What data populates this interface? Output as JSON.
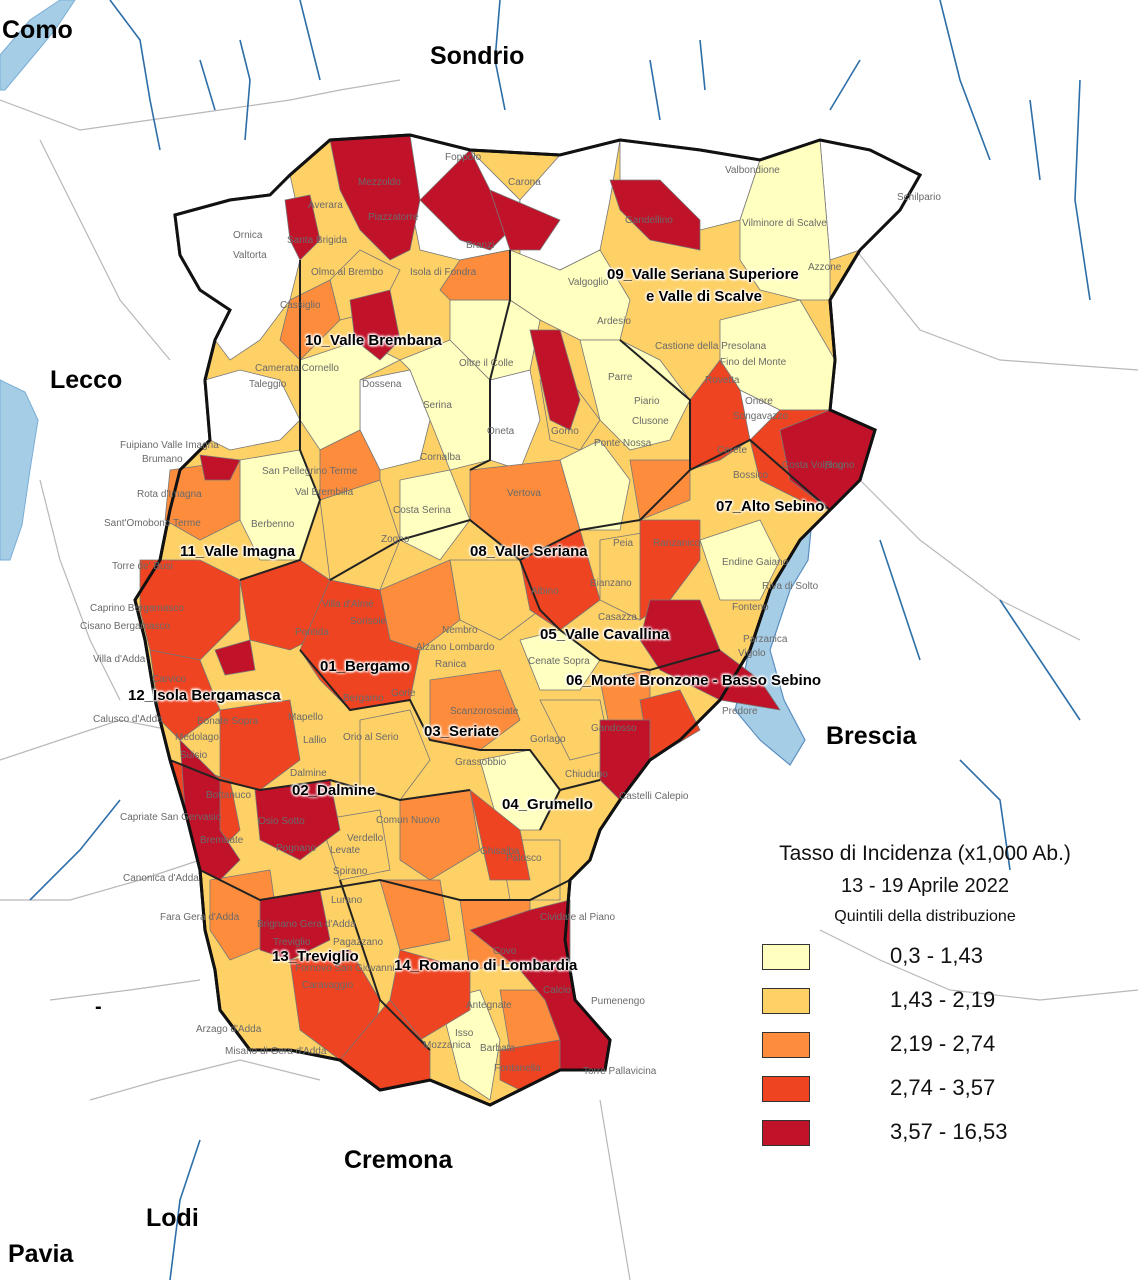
{
  "map": {
    "province_labels": [
      "Como",
      "Sondrio",
      "Lecco",
      "Brescia",
      "Cremona",
      "Lodi",
      "Pavia",
      "-"
    ],
    "districts": [
      "01_Bergamo",
      "02_Dalmine",
      "03_Seriate",
      "04_Grumello",
      "05_Valle Cavallina",
      "06_Monte Bronzone - Basso Sebino",
      "07_Alto Sebino",
      "08_Valle Seriana",
      "09_Valle Seriana Superiore",
      "e Valle di Scalve",
      "10_Valle Brembana",
      "11_Valle Imagna",
      "12_Isola Bergamasca",
      "13_Treviglio",
      "14_Romano di Lombardia"
    ],
    "towns": [
      "Foppolo",
      "Carona",
      "Valbondione",
      "Schilpario",
      "Mezzoldo",
      "Averara",
      "Santa Brigida",
      "Piazzatorre",
      "Branzi",
      "Gandellino",
      "Vilminore di Scalve",
      "Azzone",
      "Ornica",
      "Valtorta",
      "Olmo al Brembo",
      "Isola di Fondra",
      "Valgoglio",
      "Cassiglio",
      "Ardesio",
      "Castione della Presolana",
      "Fino del Monte",
      "Oltre il Colle",
      "Parre",
      "Rovetta",
      "Camerata Cornello",
      "Taleggio",
      "Dossena",
      "Serina",
      "Piario",
      "Clusone",
      "Onore",
      "Songavazzo",
      "Fuipiano Valle Imagna",
      "Brumano",
      "Oneta",
      "Gorno",
      "Ponte Nossa",
      "Cerete",
      "Rogno",
      "Costa Volpino",
      "San Pellegrino Terme",
      "Val Brembilla",
      "Cornalba",
      "Rota d'Imagna",
      "Vertova",
      "Bossico",
      "Sant'Omobono Terme",
      "Costa Serina",
      "Berbenno",
      "Zogno",
      "Peia",
      "Ranzanico",
      "Endine Gaiano",
      "Riva di Solto",
      "Torre de' Busi",
      "Villa d'Almè",
      "Sorisole",
      "Nembro",
      "Albino",
      "Bianzano",
      "Caprino Bergamasco",
      "Cisano Bergamasco",
      "Alzano Lombardo",
      "Casazza",
      "Fonteno",
      "Pontida",
      "Ranica",
      "Villa d'Adda",
      "Carvico",
      "Cenate Sopra",
      "Parzanica",
      "Vigolo",
      "Bergamo",
      "Gorle",
      "Scanzorosciate",
      "Predore",
      "Calusco d'Adda",
      "Bonate Sopra",
      "Mapello",
      "Orio al Serio",
      "Gorlago",
      "Gandosso",
      "Medolago",
      "Suisio",
      "Grassobbio",
      "Chiuduno",
      "Dalmine",
      "Castelli Calepio",
      "Bottanuco",
      "Capriate San Gervasio",
      "Osio Sotto",
      "Brembate",
      "Verdello",
      "Comun Nuovo",
      "Levate",
      "Ghisalba",
      "Palosco",
      "Canonica d'Adda",
      "Spirano",
      "Lurano",
      "Fara Gera d'Adda",
      "Brignano Gera d'Adda",
      "Cividate al Piano",
      "Treviglio",
      "Pagazzano",
      "Covo",
      "Calcio",
      "Fornovo San Giovanni",
      "Caravaggio",
      "Antegnate",
      "Pumenengo",
      "Arzago d'Adda",
      "Isso",
      "Barbata",
      "Misano di Gera d'Adda",
      "Mozzanica",
      "Fontanella",
      "Torre Pallavicina",
      "Pognano",
      "Lallio"
    ]
  },
  "legend": {
    "title": "Tasso di Incidenza (x1,000 Ab.)",
    "period": "13 - 19 Aprile 2022",
    "subtitle": "Quintili della distribuzione",
    "classes": [
      {
        "range": "0,3 - 1,43",
        "color": "#ffffbf"
      },
      {
        "range": "1,43 - 2,19",
        "color": "#fed166"
      },
      {
        "range": "2,19 - 2,74",
        "color": "#fd8d3c"
      },
      {
        "range": "2,74 - 3,57",
        "color": "#ee4421"
      },
      {
        "range": "3,57 - 16,53",
        "color": "#c0132a"
      }
    ]
  },
  "colors": {
    "water": "#a6cde6",
    "river": "#2d6ea8",
    "boundary_external": "#b8b8b8",
    "no_data": "#ffffff"
  }
}
